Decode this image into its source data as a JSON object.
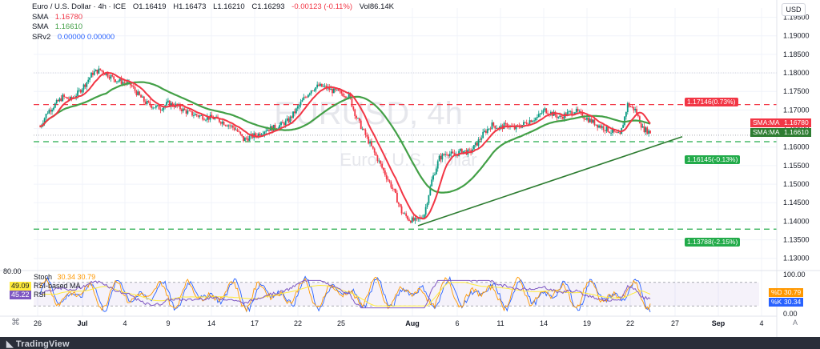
{
  "header": {
    "symbol_line": "Euro / U.S. Dollar · 4h · ICE",
    "ohlc": {
      "O": "O1.16419",
      "H": "H1.16473",
      "L": "L1.16210",
      "C": "C1.16293",
      "chg": "-0.00123 (-0.11%)",
      "vol": "Vol86.14K"
    },
    "indicators": [
      {
        "name": "SMA",
        "value": "1.16780",
        "color": "#f23645"
      },
      {
        "name": "SMA",
        "value": "1.16610",
        "color": "#43a047"
      },
      {
        "name": "SRv2",
        "value": "0.00000  0.00000",
        "color": "#2962ff"
      }
    ],
    "currency": "USD"
  },
  "watermark": {
    "symbol": "EURUSD, 4h",
    "name": "Euro / U.S. Dollar"
  },
  "price_axis": {
    "ticks": [
      "1.19500",
      "1.19000",
      "1.18500",
      "1.18000",
      "1.17500",
      "1.17000",
      "1.16500",
      "1.16000",
      "1.15500",
      "1.15000",
      "1.14500",
      "1.14000",
      "1.13500",
      "1.13000"
    ],
    "tick_values": [
      1.195,
      1.19,
      1.185,
      1.18,
      1.175,
      1.17,
      1.165,
      1.16,
      1.155,
      1.15,
      1.145,
      1.14,
      1.135,
      1.13
    ],
    "ylim": [
      1.128,
      1.1975
    ]
  },
  "levels": {
    "resistance": {
      "price": 1.17146,
      "label": "1.17146(0.73%)",
      "color": "#f23645"
    },
    "support1": {
      "price": 1.16145,
      "label": "1.16145(-0.13%)",
      "color": "#089981"
    },
    "support2": {
      "price": 1.13788,
      "label": "1.13788(-2.15%)",
      "color": "#089981"
    },
    "sma_red_tag": {
      "label": "SMA:MA",
      "value": "1.16780",
      "color": "#f23645",
      "price": 1.1678
    },
    "sma_green_tag": {
      "label": "SMA:MA",
      "value": "1.16610",
      "color": "#43a047",
      "price": 1.1661
    }
  },
  "time_axis": {
    "labels": [
      "26",
      "Jul",
      "4",
      "9",
      "14",
      "17",
      "22",
      "25",
      "Aug",
      "6",
      "11",
      "14",
      "19",
      "22",
      "27",
      "Sep",
      "4"
    ]
  },
  "oscillator": {
    "legend": {
      "stoch": "Stoch",
      "stoch_values": "30.34  30.79",
      "rsi_ma": "RSI-based MA",
      "rsi_ma_value": "49.09",
      "rsi": "RSI",
      "rsi_value": "45.22",
      "top_value": "80.00"
    },
    "ticks": [
      "100.00",
      "0.00"
    ],
    "tags": {
      "d_label": "%D",
      "d_value": "30.79",
      "k_label": "%K",
      "k_value": "30.34"
    },
    "corner": "A"
  },
  "brand": "TradingView",
  "chart_data": {
    "type": "candlestick",
    "title": "Euro / U.S. Dollar · 4h · ICE",
    "x_labels": [
      "26",
      "Jul",
      "4",
      "9",
      "14",
      "17",
      "22",
      "25",
      "Aug",
      "6",
      "11",
      "14",
      "19",
      "22",
      "27",
      "Sep",
      "4"
    ],
    "ylim": [
      1.128,
      1.1975
    ],
    "close_path": [
      [
        0,
        1.1655
      ],
      [
        5,
        1.1695
      ],
      [
        10,
        1.1715
      ],
      [
        15,
        1.1735
      ],
      [
        20,
        1.1728
      ],
      [
        25,
        1.1745
      ],
      [
        30,
        1.177
      ],
      [
        35,
        1.18
      ],
      [
        40,
        1.1808
      ],
      [
        45,
        1.1795
      ],
      [
        50,
        1.1782
      ],
      [
        55,
        1.1775
      ],
      [
        60,
        1.1768
      ],
      [
        65,
        1.1742
      ],
      [
        70,
        1.172
      ],
      [
        75,
        1.171
      ],
      [
        80,
        1.1705
      ],
      [
        85,
        1.1718
      ],
      [
        90,
        1.1712
      ],
      [
        95,
        1.17
      ],
      [
        100,
        1.169
      ],
      [
        105,
        1.1685
      ],
      [
        110,
        1.168
      ],
      [
        115,
        1.1678
      ],
      [
        120,
        1.167
      ],
      [
        125,
        1.166
      ],
      [
        130,
        1.1648
      ],
      [
        135,
        1.162
      ],
      [
        140,
        1.1628
      ],
      [
        145,
        1.1635
      ],
      [
        150,
        1.1648
      ],
      [
        155,
        1.1652
      ],
      [
        160,
        1.166
      ],
      [
        165,
        1.1672
      ],
      [
        170,
        1.17
      ],
      [
        175,
        1.173
      ],
      [
        180,
        1.1755
      ],
      [
        185,
        1.1765
      ],
      [
        190,
        1.176
      ],
      [
        195,
        1.175
      ],
      [
        200,
        1.1745
      ],
      [
        205,
        1.1738
      ],
      [
        210,
        1.168
      ],
      [
        215,
        1.164
      ],
      [
        220,
        1.16
      ],
      [
        225,
        1.156
      ],
      [
        230,
        1.152
      ],
      [
        235,
        1.148
      ],
      [
        240,
        1.1425
      ],
      [
        245,
        1.1405
      ],
      [
        250,
        1.14
      ],
      [
        255,
        1.142
      ],
      [
        260,
        1.151
      ],
      [
        265,
        1.157
      ],
      [
        270,
        1.1585
      ],
      [
        275,
        1.1578
      ],
      [
        280,
        1.159
      ],
      [
        285,
        1.1585
      ],
      [
        290,
        1.161
      ],
      [
        295,
        1.164
      ],
      [
        300,
        1.166
      ],
      [
        305,
        1.1652
      ],
      [
        310,
        1.166
      ],
      [
        315,
        1.165
      ],
      [
        320,
        1.166
      ],
      [
        325,
        1.1672
      ],
      [
        330,
        1.168
      ],
      [
        335,
        1.17
      ],
      [
        340,
        1.169
      ],
      [
        345,
        1.168
      ],
      [
        350,
        1.169
      ],
      [
        355,
        1.1698
      ],
      [
        360,
        1.1685
      ],
      [
        365,
        1.1672
      ],
      [
        370,
        1.166
      ],
      [
        375,
        1.165
      ],
      [
        380,
        1.164
      ],
      [
        385,
        1.163
      ],
      [
        390,
        1.1715
      ],
      [
        395,
        1.17
      ],
      [
        400,
        1.165
      ],
      [
        405,
        1.164
      ]
    ],
    "sma_fast": {
      "name": "SMA",
      "value": "1.16780",
      "color": "#f23645"
    },
    "sma_slow": {
      "name": "SMA",
      "value": "1.16610",
      "color": "#43a047"
    },
    "trendline": [
      [
        1.1388,
        0
      ],
      [
        1.1628,
        1
      ]
    ],
    "grid": true
  }
}
